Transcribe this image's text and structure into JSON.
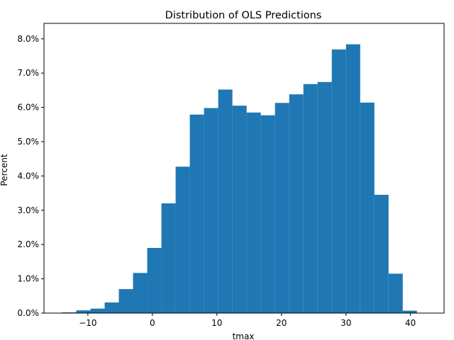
{
  "chart_data": {
    "type": "bar",
    "title": "Distribution of OLS Predictions",
    "xlabel": "tmax",
    "ylabel": "Percent",
    "bar_color": "#1f77b4",
    "xlim": [
      -16.8,
      45.2
    ],
    "ylim": [
      0,
      8.45
    ],
    "grid": false,
    "x_ticks": [
      {
        "value": -10,
        "label": "−10"
      },
      {
        "value": 0,
        "label": "0"
      },
      {
        "value": 10,
        "label": "10"
      },
      {
        "value": 20,
        "label": "20"
      },
      {
        "value": 30,
        "label": "30"
      },
      {
        "value": 40,
        "label": "40"
      }
    ],
    "y_ticks": [
      {
        "value": 0,
        "label": "0.0%"
      },
      {
        "value": 1,
        "label": "1.0%"
      },
      {
        "value": 2,
        "label": "2.0%"
      },
      {
        "value": 3,
        "label": "3.0%"
      },
      {
        "value": 4,
        "label": "4.0%"
      },
      {
        "value": 5,
        "label": "5.0%"
      },
      {
        "value": 6,
        "label": "6.0%"
      },
      {
        "value": 7,
        "label": "7.0%"
      },
      {
        "value": 8,
        "label": "8.0%"
      }
    ],
    "bins": [
      {
        "x0": -14.0,
        "x1": -11.8,
        "value": 0.02
      },
      {
        "x0": -11.8,
        "x1": -9.6,
        "value": 0.08
      },
      {
        "x0": -9.6,
        "x1": -7.4,
        "value": 0.13
      },
      {
        "x0": -7.4,
        "x1": -5.2,
        "value": 0.31
      },
      {
        "x0": -5.2,
        "x1": -3.0,
        "value": 0.7
      },
      {
        "x0": -3.0,
        "x1": -0.8,
        "value": 1.17
      },
      {
        "x0": -0.8,
        "x1": 1.4,
        "value": 1.9
      },
      {
        "x0": 1.4,
        "x1": 3.6,
        "value": 3.2
      },
      {
        "x0": 3.6,
        "x1": 5.8,
        "value": 4.27
      },
      {
        "x0": 5.8,
        "x1": 8.0,
        "value": 5.79
      },
      {
        "x0": 8.0,
        "x1": 10.2,
        "value": 5.98
      },
      {
        "x0": 10.2,
        "x1": 12.4,
        "value": 6.52
      },
      {
        "x0": 12.4,
        "x1": 14.6,
        "value": 6.05
      },
      {
        "x0": 14.6,
        "x1": 16.8,
        "value": 5.85
      },
      {
        "x0": 16.8,
        "x1": 19.0,
        "value": 5.77
      },
      {
        "x0": 19.0,
        "x1": 21.2,
        "value": 6.13
      },
      {
        "x0": 21.2,
        "x1": 23.4,
        "value": 6.38
      },
      {
        "x0": 23.4,
        "x1": 25.6,
        "value": 6.68
      },
      {
        "x0": 25.6,
        "x1": 27.8,
        "value": 6.74
      },
      {
        "x0": 27.8,
        "x1": 30.0,
        "value": 7.69
      },
      {
        "x0": 30.0,
        "x1": 32.2,
        "value": 7.84
      },
      {
        "x0": 32.2,
        "x1": 34.4,
        "value": 6.14
      },
      {
        "x0": 34.4,
        "x1": 36.6,
        "value": 3.45
      },
      {
        "x0": 36.6,
        "x1": 38.8,
        "value": 1.15
      },
      {
        "x0": 38.8,
        "x1": 41.0,
        "value": 0.07
      }
    ]
  }
}
